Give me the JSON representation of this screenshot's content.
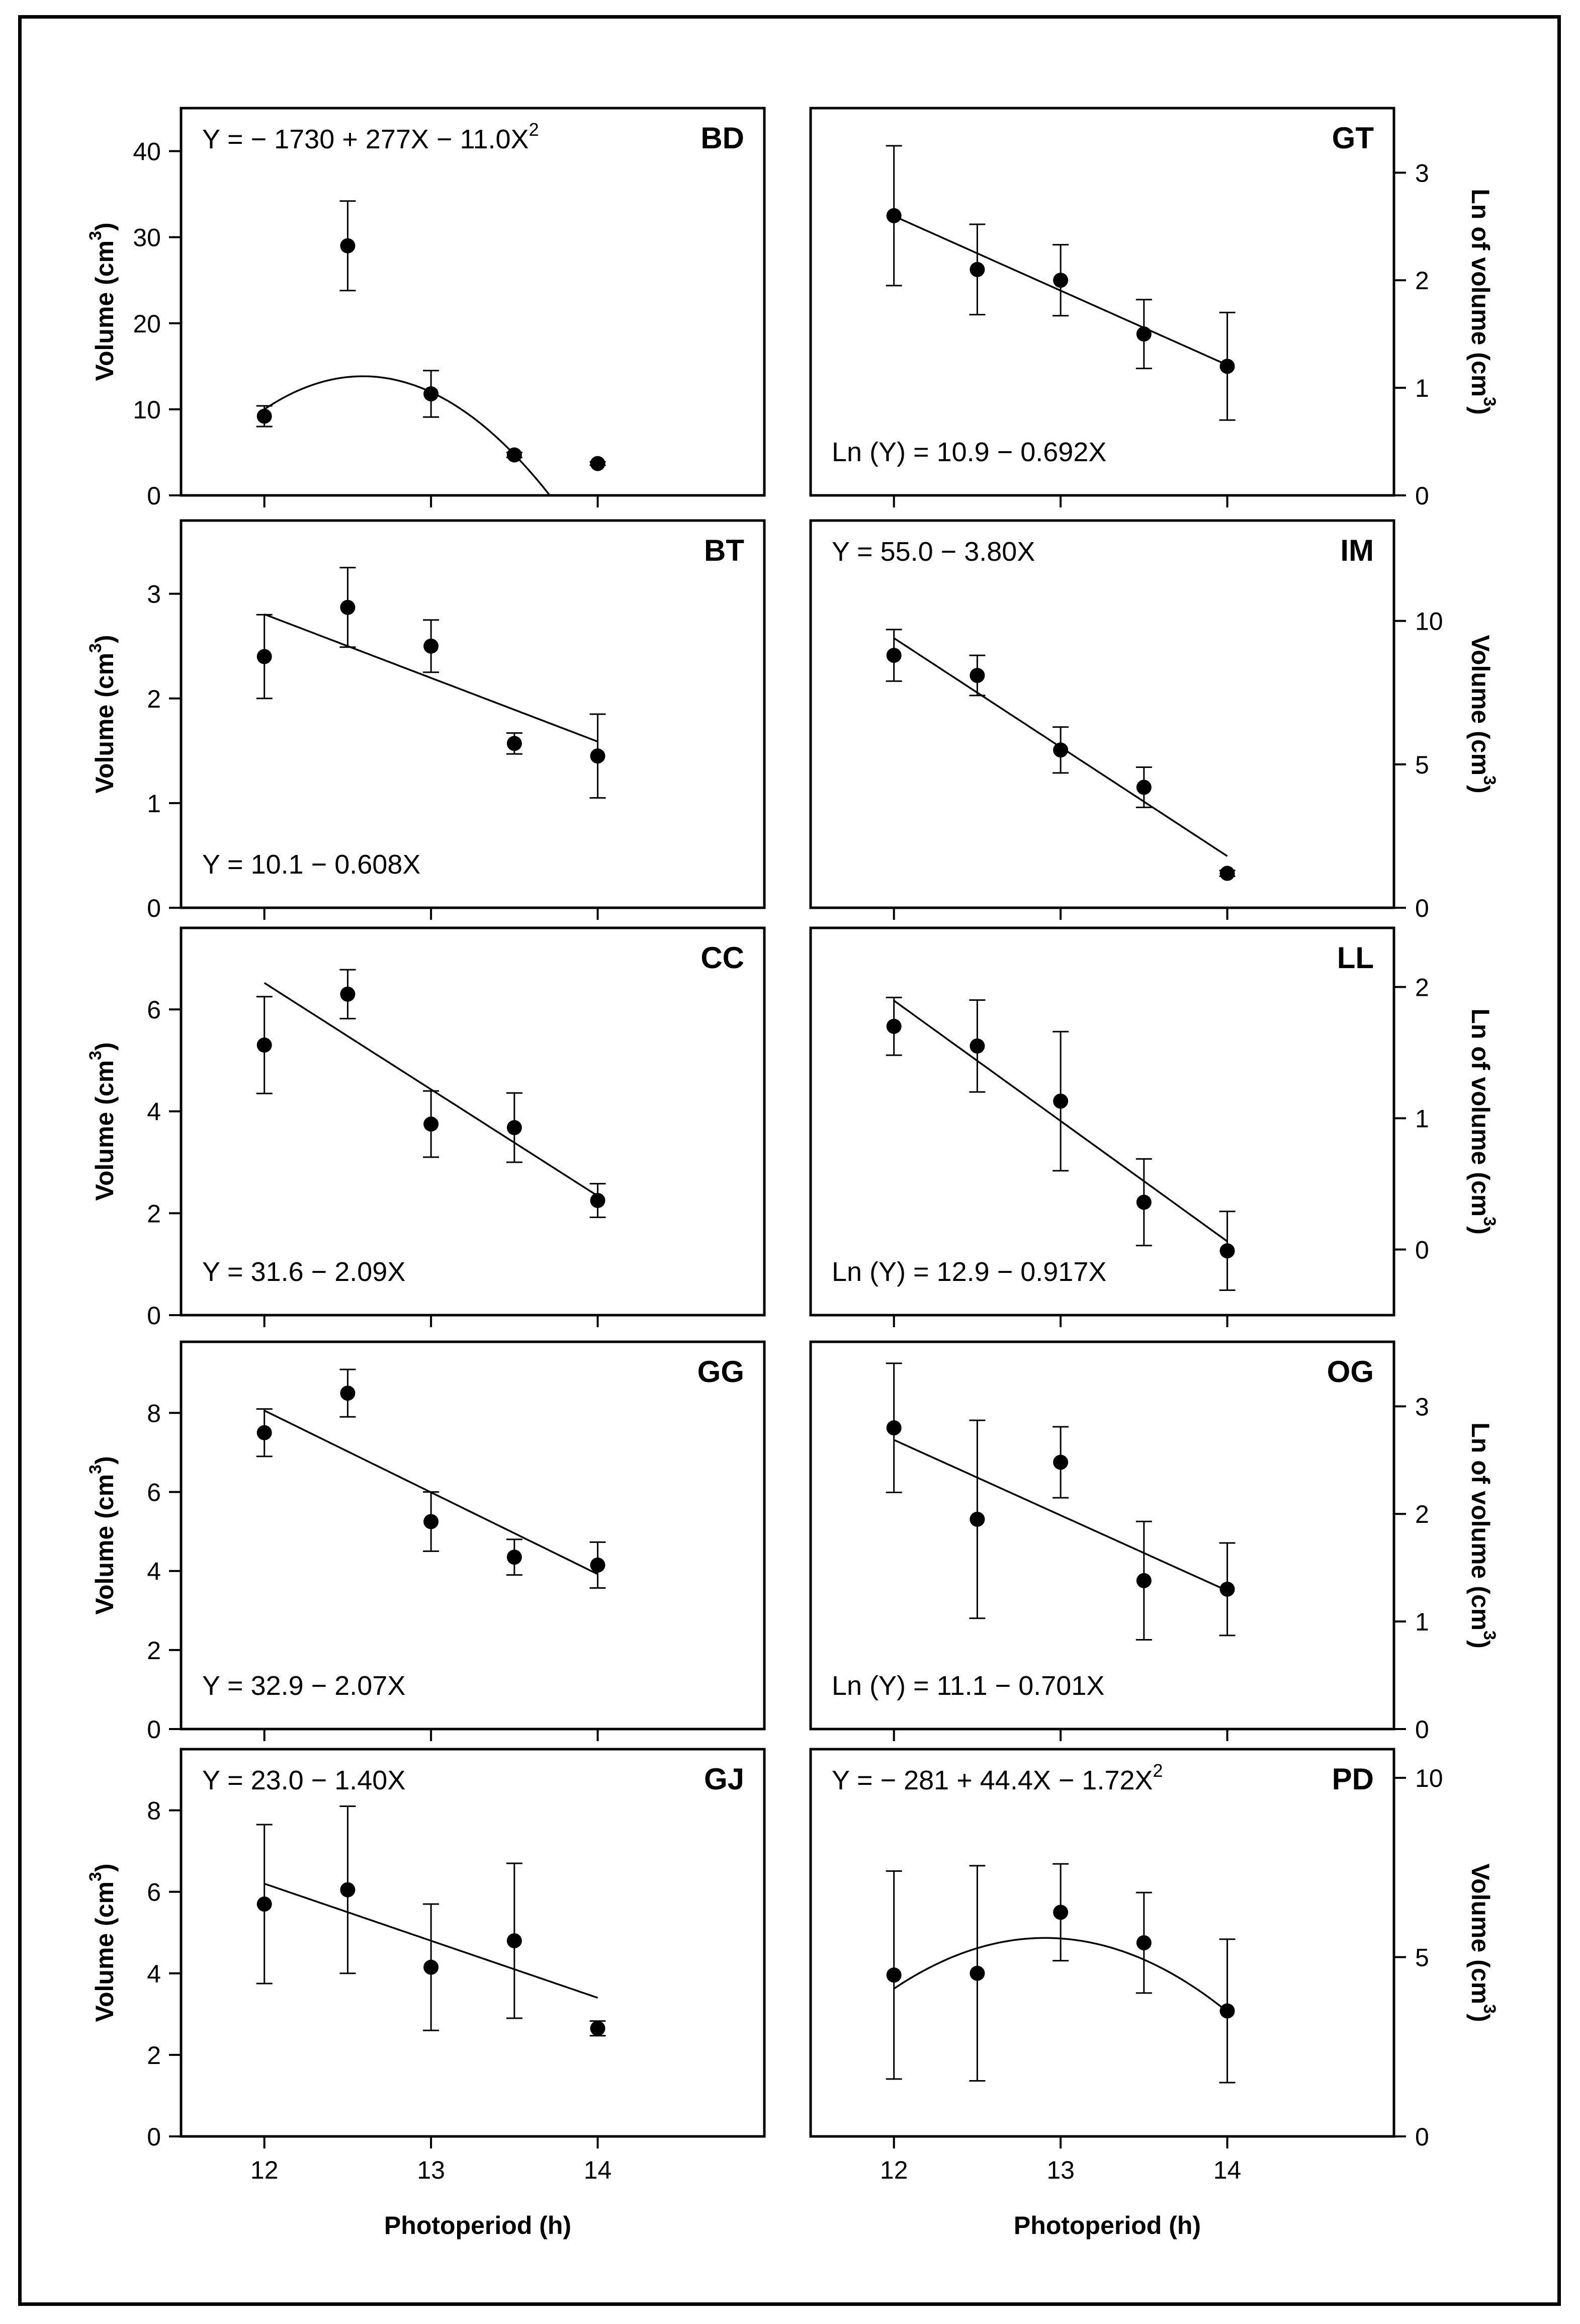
{
  "figure": {
    "x_axis_label": "Photoperiod (h)",
    "x_ticks": [
      12,
      13,
      14
    ]
  },
  "chart_data": [
    {
      "type": "scatter",
      "panel": "BD",
      "fit": "quadratic",
      "coef": [
        -1730,
        277,
        -11.0
      ],
      "equation": "Y = − 1730 + 277X − 11.0X",
      "equation_sup": "2",
      "equation_pos": "top-left",
      "ylabel": "Volume (cm",
      "ylabel_sup": "3",
      "ylabel_end": ")",
      "y_axis_side": "left",
      "ylim": [
        0,
        45
      ],
      "yticks": [
        0,
        10,
        20,
        30,
        40
      ],
      "x": [
        12,
        12.5,
        13,
        13.5,
        14
      ],
      "y": [
        9.2,
        29.0,
        11.8,
        4.7,
        3.7
      ],
      "err": [
        1.2,
        5.2,
        2.7,
        0.3,
        0.2
      ]
    },
    {
      "type": "scatter",
      "panel": "GT",
      "fit": "linear",
      "coef": [
        10.9,
        -0.692
      ],
      "equation": "Ln (Y) = 10.9 − 0.692X",
      "equation_sup": "",
      "equation_pos": "bottom-left",
      "ylabel": "Ln of volume (cm",
      "ylabel_sup": "3",
      "ylabel_end": ")",
      "y_axis_side": "right",
      "ylim": [
        0,
        3.6
      ],
      "yticks": [
        0,
        1,
        2,
        3
      ],
      "x": [
        12,
        12.5,
        13,
        13.5,
        14
      ],
      "y": [
        2.6,
        2.1,
        2.0,
        1.5,
        1.2
      ],
      "err": [
        0.65,
        0.42,
        0.33,
        0.32,
        0.5
      ]
    },
    {
      "type": "scatter",
      "panel": "BT",
      "fit": "linear",
      "coef": [
        10.1,
        -0.608
      ],
      "equation": "Y = 10.1 − 0.608X",
      "equation_sup": "",
      "equation_pos": "bottom-left",
      "ylabel": "Volume (cm",
      "ylabel_sup": "3",
      "ylabel_end": ")",
      "y_axis_side": "left",
      "ylim": [
        0,
        3.7
      ],
      "yticks": [
        0,
        1,
        2,
        3
      ],
      "x": [
        12,
        12.5,
        13,
        13.5,
        14
      ],
      "y": [
        2.4,
        2.87,
        2.5,
        1.57,
        1.45
      ],
      "err": [
        0.4,
        0.38,
        0.25,
        0.1,
        0.4
      ]
    },
    {
      "type": "scatter",
      "panel": "IM",
      "fit": "linear",
      "coef": [
        55.0,
        -3.8
      ],
      "equation": "Y = 55.0 − 3.80X",
      "equation_sup": "",
      "equation_pos": "top-left",
      "ylabel": "Volume (cm",
      "ylabel_sup": "3",
      "ylabel_end": ")",
      "y_axis_side": "right",
      "ylim": [
        0,
        13.5
      ],
      "yticks": [
        0,
        5,
        10
      ],
      "x": [
        12,
        12.5,
        13,
        13.5,
        14
      ],
      "y": [
        8.8,
        8.1,
        5.5,
        4.2,
        1.2
      ],
      "err": [
        0.9,
        0.7,
        0.8,
        0.7,
        0.1
      ]
    },
    {
      "type": "scatter",
      "panel": "CC",
      "fit": "linear",
      "coef": [
        31.6,
        -2.09
      ],
      "equation": "Y = 31.6 − 2.09X",
      "equation_sup": "",
      "equation_pos": "bottom-left",
      "ylabel": "Volume (cm",
      "ylabel_sup": "3",
      "ylabel_end": ")",
      "y_axis_side": "left",
      "ylim": [
        0,
        7.6
      ],
      "yticks": [
        0,
        2,
        4,
        6
      ],
      "x": [
        12,
        12.5,
        13,
        13.5,
        14
      ],
      "y": [
        5.3,
        6.3,
        3.75,
        3.68,
        2.25
      ],
      "err": [
        0.95,
        0.48,
        0.65,
        0.68,
        0.33
      ]
    },
    {
      "type": "scatter",
      "panel": "LL",
      "fit": "linear",
      "coef": [
        12.9,
        -0.917
      ],
      "equation": "Ln (Y) = 12.9 − 0.917X",
      "equation_sup": "",
      "equation_pos": "bottom-left",
      "ylabel": "Ln of volume (cm",
      "ylabel_sup": "3",
      "ylabel_end": ")",
      "y_axis_side": "right",
      "ylim": [
        -0.5,
        2.45
      ],
      "yticks": [
        0,
        1,
        2
      ],
      "x": [
        12,
        12.5,
        13,
        13.5,
        14
      ],
      "y": [
        1.7,
        1.55,
        1.13,
        0.36,
        -0.01
      ],
      "err": [
        0.22,
        0.35,
        0.53,
        0.33,
        0.3
      ]
    },
    {
      "type": "scatter",
      "panel": "GG",
      "fit": "linear",
      "coef": [
        32.9,
        -2.07
      ],
      "equation": "Y = 32.9 − 2.07X",
      "equation_sup": "",
      "equation_pos": "bottom-left",
      "ylabel": "Volume (cm",
      "ylabel_sup": "3",
      "ylabel_end": ")",
      "y_axis_side": "left",
      "ylim": [
        0,
        9.8
      ],
      "yticks": [
        0,
        2,
        4,
        6,
        8
      ],
      "x": [
        12,
        12.5,
        13,
        13.5,
        14
      ],
      "y": [
        7.5,
        8.5,
        5.25,
        4.35,
        4.15
      ],
      "err": [
        0.6,
        0.6,
        0.75,
        0.45,
        0.58
      ]
    },
    {
      "type": "scatter",
      "panel": "OG",
      "fit": "linear",
      "coef": [
        11.1,
        -0.701
      ],
      "equation": "Ln (Y) = 11.1 − 0.701X",
      "equation_sup": "",
      "equation_pos": "bottom-left",
      "ylabel": "Ln of volume (cm",
      "ylabel_sup": "3",
      "ylabel_end": ")",
      "y_axis_side": "right",
      "ylim": [
        0,
        3.6
      ],
      "yticks": [
        0,
        1,
        2,
        3
      ],
      "x": [
        12,
        12.5,
        13,
        13.5,
        14
      ],
      "y": [
        2.8,
        1.95,
        2.48,
        1.38,
        1.3
      ],
      "err": [
        0.6,
        0.92,
        0.33,
        0.55,
        0.43
      ]
    },
    {
      "type": "scatter",
      "panel": "GJ",
      "fit": "linear",
      "coef": [
        23.0,
        -1.4
      ],
      "equation": "Y = 23.0 − 1.40X",
      "equation_sup": "",
      "equation_pos": "top-left",
      "ylabel": "Volume (cm",
      "ylabel_sup": "3",
      "ylabel_end": ")",
      "y_axis_side": "left",
      "ylim": [
        0,
        9.5
      ],
      "yticks": [
        0,
        2,
        4,
        6,
        8
      ],
      "x": [
        12,
        12.5,
        13,
        13.5,
        14
      ],
      "y": [
        5.7,
        6.05,
        4.15,
        4.8,
        2.65
      ],
      "err": [
        1.95,
        2.05,
        1.55,
        1.9,
        0.18
      ]
    },
    {
      "type": "scatter",
      "panel": "PD",
      "fit": "quadratic",
      "coef": [
        -281,
        44.4,
        -1.72
      ],
      "equation": "Y = − 281 + 44.4X − 1.72X",
      "equation_sup": "2",
      "equation_pos": "top-left",
      "ylabel": "Volume (cm",
      "ylabel_sup": "3",
      "ylabel_end": ")",
      "y_axis_side": "right",
      "ylim": [
        0,
        10.8
      ],
      "yticks": [
        0,
        5,
        10
      ],
      "x": [
        12,
        12.5,
        13,
        13.5,
        14
      ],
      "y": [
        4.5,
        4.55,
        6.25,
        5.4,
        3.5
      ],
      "err": [
        2.9,
        3.0,
        1.35,
        1.4,
        2.0
      ]
    }
  ]
}
